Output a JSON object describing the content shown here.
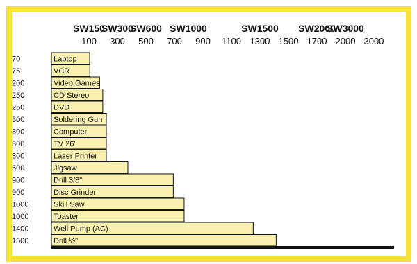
{
  "chart_data": {
    "type": "bar",
    "orientation": "horizontal",
    "title": "",
    "xlabel": "",
    "ylabel": "",
    "models": [
      {
        "label": "SW150",
        "tick": "100"
      },
      {
        "label": "SW300",
        "tick": "300"
      },
      {
        "label": "SW600",
        "tick": "500"
      },
      {
        "label": "SW1000",
        "tick": "900"
      },
      {
        "label": "SW1500",
        "tick": "1300"
      },
      {
        "label": "SW2000",
        "tick": "1700"
      },
      {
        "label": "SW3000",
        "tick": "2000"
      }
    ],
    "x_ticks": [
      "100",
      "300",
      "500",
      "700",
      "900",
      "1100",
      "1300",
      "1500",
      "1700",
      "2000",
      "3000"
    ],
    "categories": [
      "Laptop",
      "VCR",
      "Video Games",
      "CD Stereo",
      "DVD",
      "Soldering Gun",
      "Computer",
      "TV 26\"",
      "Laser Printer",
      "Jigsaw",
      "Drill 3/8\"",
      "Disc Grinder",
      "Skill Saw",
      "Toaster",
      "Well Pump (AC)",
      "Drill ½\""
    ],
    "values": [
      70,
      75,
      200,
      250,
      250,
      300,
      300,
      300,
      300,
      500,
      900,
      900,
      1000,
      1000,
      1400,
      1500
    ],
    "value_labels": [
      "70",
      "75",
      "200",
      "250",
      "250",
      "300",
      "300",
      "300",
      "300",
      "500",
      "900",
      "900",
      "1000",
      "1000",
      "1400",
      "1500"
    ],
    "bar_extent": [
      105,
      106,
      175,
      197,
      197,
      222,
      222,
      222,
      222,
      373,
      692,
      692,
      768,
      768,
      1253,
      1414
    ],
    "x_axis_mapping_note": "",
    "colors": {
      "frame": "#f6e13a",
      "bar": "#fbf1b0",
      "text": "#111111"
    }
  }
}
